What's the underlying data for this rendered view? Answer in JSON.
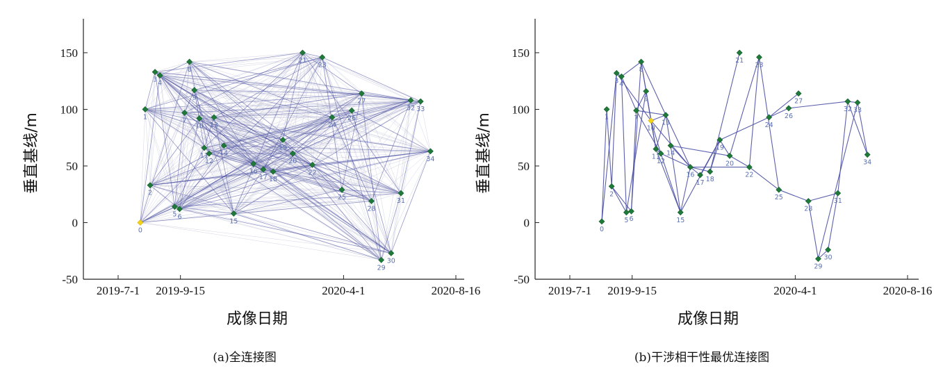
{
  "chart_data": [
    {
      "type": "scatter",
      "connections": "all",
      "caption": "(a)全连接图",
      "xlabel": "成像日期",
      "ylabel": "垂直基线/m",
      "x_tick_labels": [
        "2019-7-1",
        "2019-9-15",
        "2020-4-1",
        "2020-8-16"
      ],
      "x_tick_dates": [
        "2019-07-01",
        "2019-09-15",
        "2020-04-01",
        "2020-08-16"
      ],
      "y_ticks": [
        -50,
        0,
        50,
        100,
        150
      ],
      "ylim": [
        -50,
        180
      ],
      "reference_node": "0",
      "series": [
        {
          "points": [
            {
              "label": "0",
              "x": "2019-07-28",
              "y": 0
            },
            {
              "label": "1",
              "x": "2019-08-03",
              "y": 100
            },
            {
              "label": "2",
              "x": "2019-08-09",
              "y": 33
            },
            {
              "label": "3",
              "x": "2019-08-15",
              "y": 133
            },
            {
              "label": "4",
              "x": "2019-08-21",
              "y": 130
            },
            {
              "label": "5",
              "x": "2019-09-08",
              "y": 14
            },
            {
              "label": "6",
              "x": "2019-09-14",
              "y": 12
            },
            {
              "label": "7",
              "x": "2019-09-20",
              "y": 97
            },
            {
              "label": "8",
              "x": "2019-09-26",
              "y": 142
            },
            {
              "label": "9",
              "x": "2019-10-02",
              "y": 117
            },
            {
              "label": "10",
              "x": "2019-10-08",
              "y": 92
            },
            {
              "label": "11",
              "x": "2019-10-14",
              "y": 66
            },
            {
              "label": "12",
              "x": "2019-10-20",
              "y": 61
            },
            {
              "label": "13",
              "x": "2019-10-26",
              "y": 93
            },
            {
              "label": "14",
              "x": "2019-11-07",
              "y": 68
            },
            {
              "label": "15",
              "x": "2019-11-19",
              "y": 8
            },
            {
              "label": "16",
              "x": "2019-12-13",
              "y": 52
            },
            {
              "label": "17",
              "x": "2019-12-25",
              "y": 47
            },
            {
              "label": "18",
              "x": "2020-01-06",
              "y": 45
            },
            {
              "label": "19",
              "x": "2020-01-18",
              "y": 73
            },
            {
              "label": "20",
              "x": "2020-01-30",
              "y": 61
            },
            {
              "label": "21",
              "x": "2020-02-11",
              "y": 150
            },
            {
              "label": "22",
              "x": "2020-02-23",
              "y": 51
            },
            {
              "label": "23",
              "x": "2020-03-06",
              "y": 146
            },
            {
              "label": "24",
              "x": "2020-03-18",
              "y": 93
            },
            {
              "label": "25",
              "x": "2020-03-30",
              "y": 29
            },
            {
              "label": "26",
              "x": "2020-04-11",
              "y": 99
            },
            {
              "label": "27",
              "x": "2020-04-23",
              "y": 114
            },
            {
              "label": "28",
              "x": "2020-05-05",
              "y": 19
            },
            {
              "label": "29",
              "x": "2020-05-17",
              "y": -33
            },
            {
              "label": "30",
              "x": "2020-05-29",
              "y": -27
            },
            {
              "label": "31",
              "x": "2020-06-10",
              "y": 26
            },
            {
              "label": "32",
              "x": "2020-06-22",
              "y": 108
            },
            {
              "label": "33",
              "x": "2020-07-04",
              "y": 107
            },
            {
              "label": "34",
              "x": "2020-07-16",
              "y": 63
            }
          ]
        }
      ]
    },
    {
      "type": "scatter",
      "connections": "selected",
      "caption": "(b)干涉相干性最优连接图",
      "xlabel": "成像日期",
      "ylabel": "垂直基线/m",
      "x_tick_labels": [
        "2019-7-1",
        "2019-9-15",
        "2020-4-1",
        "2020-8-16"
      ],
      "x_tick_dates": [
        "2019-07-01",
        "2019-09-15",
        "2020-04-01",
        "2020-08-16"
      ],
      "y_ticks": [
        -50,
        0,
        50,
        100,
        150
      ],
      "ylim": [
        -50,
        180
      ],
      "reference_node": "10",
      "series": [
        {
          "points": [
            {
              "label": "0",
              "x": "2019-08-09",
              "y": 1
            },
            {
              "label": "1",
              "x": "2019-08-15",
              "y": 100
            },
            {
              "label": "2",
              "x": "2019-08-21",
              "y": 32
            },
            {
              "label": "3",
              "x": "2019-08-27",
              "y": 132
            },
            {
              "label": "4",
              "x": "2019-09-02",
              "y": 129
            },
            {
              "label": "5",
              "x": "2019-09-08",
              "y": 9
            },
            {
              "label": "6",
              "x": "2019-09-14",
              "y": 10
            },
            {
              "label": "7",
              "x": "2019-09-20",
              "y": 99
            },
            {
              "label": "8",
              "x": "2019-09-26",
              "y": 142
            },
            {
              "label": "9",
              "x": "2019-10-02",
              "y": 116
            },
            {
              "label": "10",
              "x": "2019-10-08",
              "y": 90
            },
            {
              "label": "11",
              "x": "2019-10-14",
              "y": 65
            },
            {
              "label": "12",
              "x": "2019-10-20",
              "y": 61
            },
            {
              "label": "13",
              "x": "2019-10-26",
              "y": 95
            },
            {
              "label": "14",
              "x": "2019-11-01",
              "y": 68
            },
            {
              "label": "15",
              "x": "2019-11-13",
              "y": 9
            },
            {
              "label": "16",
              "x": "2019-11-25",
              "y": 49
            },
            {
              "label": "17",
              "x": "2019-12-07",
              "y": 42
            },
            {
              "label": "18",
              "x": "2019-12-19",
              "y": 45
            },
            {
              "label": "19",
              "x": "2019-12-31",
              "y": 73
            },
            {
              "label": "20",
              "x": "2020-01-12",
              "y": 59
            },
            {
              "label": "21",
              "x": "2020-01-24",
              "y": 150
            },
            {
              "label": "22",
              "x": "2020-02-05",
              "y": 49
            },
            {
              "label": "23",
              "x": "2020-02-17",
              "y": 146
            },
            {
              "label": "24",
              "x": "2020-02-29",
              "y": 93
            },
            {
              "label": "25",
              "x": "2020-03-12",
              "y": 29
            },
            {
              "label": "26",
              "x": "2020-03-24",
              "y": 101
            },
            {
              "label": "27",
              "x": "2020-04-05",
              "y": 114
            },
            {
              "label": "28",
              "x": "2020-04-17",
              "y": 19
            },
            {
              "label": "29",
              "x": "2020-04-29",
              "y": -32
            },
            {
              "label": "30",
              "x": "2020-05-11",
              "y": -24
            },
            {
              "label": "31",
              "x": "2020-05-23",
              "y": 26
            },
            {
              "label": "32",
              "x": "2020-06-04",
              "y": 107
            },
            {
              "label": "33",
              "x": "2020-06-16",
              "y": 106
            },
            {
              "label": "34",
              "x": "2020-06-28",
              "y": 60
            }
          ]
        }
      ],
      "links": [
        [
          "0",
          "1"
        ],
        [
          "0",
          "3"
        ],
        [
          "1",
          "2"
        ],
        [
          "2",
          "3"
        ],
        [
          "2",
          "5"
        ],
        [
          "2",
          "6"
        ],
        [
          "3",
          "4"
        ],
        [
          "3",
          "10"
        ],
        [
          "4",
          "5"
        ],
        [
          "4",
          "7"
        ],
        [
          "4",
          "8"
        ],
        [
          "5",
          "9"
        ],
        [
          "6",
          "7"
        ],
        [
          "6",
          "8"
        ],
        [
          "7",
          "9"
        ],
        [
          "7",
          "12"
        ],
        [
          "7",
          "13"
        ],
        [
          "8",
          "9"
        ],
        [
          "8",
          "11"
        ],
        [
          "8",
          "13"
        ],
        [
          "9",
          "10"
        ],
        [
          "9",
          "11"
        ],
        [
          "10",
          "11"
        ],
        [
          "10",
          "12"
        ],
        [
          "10",
          "13"
        ],
        [
          "10",
          "16"
        ],
        [
          "11",
          "12"
        ],
        [
          "11",
          "13"
        ],
        [
          "11",
          "15"
        ],
        [
          "12",
          "15"
        ],
        [
          "12",
          "16"
        ],
        [
          "13",
          "14"
        ],
        [
          "13",
          "16"
        ],
        [
          "14",
          "15"
        ],
        [
          "14",
          "16"
        ],
        [
          "14",
          "20"
        ],
        [
          "15",
          "16"
        ],
        [
          "15",
          "19"
        ],
        [
          "16",
          "17"
        ],
        [
          "16",
          "18"
        ],
        [
          "16",
          "22"
        ],
        [
          "17",
          "19"
        ],
        [
          "18",
          "19"
        ],
        [
          "18",
          "21"
        ],
        [
          "19",
          "20"
        ],
        [
          "19",
          "24"
        ],
        [
          "20",
          "22"
        ],
        [
          "20",
          "23"
        ],
        [
          "22",
          "23"
        ],
        [
          "22",
          "25"
        ],
        [
          "23",
          "25"
        ],
        [
          "24",
          "26"
        ],
        [
          "24",
          "27"
        ],
        [
          "25",
          "28"
        ],
        [
          "26",
          "32"
        ],
        [
          "28",
          "29"
        ],
        [
          "28",
          "31"
        ],
        [
          "29",
          "30"
        ],
        [
          "29",
          "33"
        ],
        [
          "30",
          "31"
        ],
        [
          "31",
          "32"
        ],
        [
          "32",
          "33"
        ],
        [
          "33",
          "34"
        ],
        [
          "32",
          "34"
        ]
      ]
    }
  ]
}
